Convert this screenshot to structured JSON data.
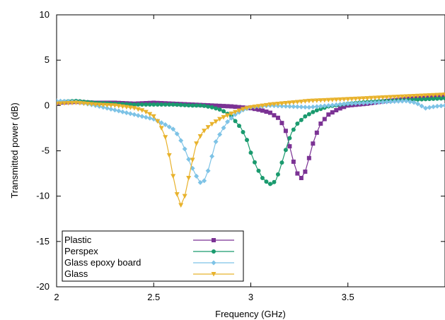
{
  "chart_data": {
    "type": "line",
    "xlabel": "Frequency (GHz)",
    "ylabel": "Transmitted power (dB)",
    "xlim": [
      2,
      4
    ],
    "ylim": [
      -20,
      10
    ],
    "x_ticks": [
      {
        "value": 2,
        "label": "2"
      },
      {
        "value": 2.5,
        "label": "2.5"
      },
      {
        "value": 3,
        "label": "3"
      },
      {
        "value": 3.5,
        "label": "3.5"
      }
    ],
    "y_ticks": [
      {
        "value": 10,
        "label": "10"
      },
      {
        "value": 5,
        "label": "5"
      },
      {
        "value": 0,
        "label": "0"
      },
      {
        "value": -5,
        "label": "-5"
      },
      {
        "value": -10,
        "label": "-10"
      },
      {
        "value": -15,
        "label": "-15"
      },
      {
        "value": -20,
        "label": "-20"
      }
    ],
    "grid": false,
    "legend": "bottom-left",
    "series": [
      {
        "name": "Plastic",
        "color": "#7b3294",
        "marker": "square",
        "points": [
          [
            2.0,
            0.3
          ],
          [
            2.1,
            0.4
          ],
          [
            2.2,
            0.3
          ],
          [
            2.3,
            0.3
          ],
          [
            2.4,
            0.2
          ],
          [
            2.5,
            0.3
          ],
          [
            2.6,
            0.2
          ],
          [
            2.7,
            0.1
          ],
          [
            2.8,
            0.0
          ],
          [
            2.9,
            -0.1
          ],
          [
            2.95,
            -0.2
          ],
          [
            3.0,
            -0.3
          ],
          [
            3.05,
            -0.5
          ],
          [
            3.1,
            -0.8
          ],
          [
            3.15,
            -1.5
          ],
          [
            3.18,
            -2.8
          ],
          [
            3.2,
            -4.5
          ],
          [
            3.22,
            -6.2
          ],
          [
            3.24,
            -7.5
          ],
          [
            3.26,
            -8.0
          ],
          [
            3.28,
            -7.3
          ],
          [
            3.3,
            -5.8
          ],
          [
            3.32,
            -4.2
          ],
          [
            3.34,
            -3.0
          ],
          [
            3.36,
            -2.0
          ],
          [
            3.4,
            -1.0
          ],
          [
            3.45,
            -0.4
          ],
          [
            3.5,
            0.0
          ],
          [
            3.6,
            0.2
          ],
          [
            3.7,
            0.5
          ],
          [
            3.8,
            0.7
          ],
          [
            3.9,
            0.9
          ],
          [
            4.0,
            1.1
          ]
        ]
      },
      {
        "name": "Perspex",
        "color": "#1a9a6e",
        "marker": "circle",
        "points": [
          [
            2.0,
            0.4
          ],
          [
            2.1,
            0.5
          ],
          [
            2.2,
            0.3
          ],
          [
            2.3,
            0.2
          ],
          [
            2.4,
            0.1
          ],
          [
            2.5,
            0.1
          ],
          [
            2.6,
            0.1
          ],
          [
            2.7,
            0.0
          ],
          [
            2.75,
            0.0
          ],
          [
            2.8,
            -0.2
          ],
          [
            2.85,
            -0.5
          ],
          [
            2.9,
            -1.2
          ],
          [
            2.95,
            -2.5
          ],
          [
            2.98,
            -3.8
          ],
          [
            3.0,
            -5.2
          ],
          [
            3.03,
            -6.8
          ],
          [
            3.06,
            -8.0
          ],
          [
            3.09,
            -8.6
          ],
          [
            3.11,
            -8.7
          ],
          [
            3.13,
            -8.2
          ],
          [
            3.15,
            -7.0
          ],
          [
            3.17,
            -5.6
          ],
          [
            3.19,
            -4.2
          ],
          [
            3.21,
            -3.0
          ],
          [
            3.24,
            -2.0
          ],
          [
            3.28,
            -1.2
          ],
          [
            3.33,
            -0.6
          ],
          [
            3.4,
            -0.1
          ],
          [
            3.5,
            0.2
          ],
          [
            3.6,
            0.4
          ],
          [
            3.7,
            0.5
          ],
          [
            3.8,
            0.6
          ],
          [
            3.9,
            0.7
          ],
          [
            4.0,
            0.8
          ]
        ]
      },
      {
        "name": "Glass epoxy board",
        "color": "#7ec3e6",
        "marker": "diamond",
        "points": [
          [
            2.0,
            0.5
          ],
          [
            2.1,
            0.4
          ],
          [
            2.2,
            0.0
          ],
          [
            2.3,
            -0.5
          ],
          [
            2.4,
            -1.0
          ],
          [
            2.5,
            -1.5
          ],
          [
            2.55,
            -2.0
          ],
          [
            2.6,
            -2.6
          ],
          [
            2.63,
            -3.4
          ],
          [
            2.66,
            -4.8
          ],
          [
            2.69,
            -6.5
          ],
          [
            2.72,
            -7.8
          ],
          [
            2.74,
            -8.5
          ],
          [
            2.76,
            -8.3
          ],
          [
            2.78,
            -7.2
          ],
          [
            2.8,
            -5.6
          ],
          [
            2.82,
            -4.0
          ],
          [
            2.85,
            -2.8
          ],
          [
            2.88,
            -1.8
          ],
          [
            2.92,
            -1.0
          ],
          [
            2.96,
            -0.5
          ],
          [
            3.0,
            -0.2
          ],
          [
            3.1,
            0.0
          ],
          [
            3.2,
            -0.1
          ],
          [
            3.3,
            -0.2
          ],
          [
            3.4,
            0.0
          ],
          [
            3.5,
            0.2
          ],
          [
            3.6,
            0.3
          ],
          [
            3.7,
            0.4
          ],
          [
            3.8,
            0.5
          ],
          [
            3.85,
            0.3
          ],
          [
            3.9,
            -0.3
          ],
          [
            3.95,
            -0.1
          ],
          [
            4.0,
            0.0
          ]
        ]
      },
      {
        "name": "Glass",
        "color": "#e8b22c",
        "marker": "triangle-down",
        "points": [
          [
            2.0,
            0.2
          ],
          [
            2.1,
            0.3
          ],
          [
            2.2,
            0.1
          ],
          [
            2.3,
            0.0
          ],
          [
            2.4,
            -0.3
          ],
          [
            2.45,
            -0.6
          ],
          [
            2.5,
            -1.2
          ],
          [
            2.53,
            -2.0
          ],
          [
            2.56,
            -3.5
          ],
          [
            2.58,
            -5.5
          ],
          [
            2.6,
            -7.8
          ],
          [
            2.62,
            -9.8
          ],
          [
            2.64,
            -11.0
          ],
          [
            2.66,
            -10.0
          ],
          [
            2.68,
            -8.0
          ],
          [
            2.7,
            -6.0
          ],
          [
            2.72,
            -4.2
          ],
          [
            2.75,
            -3.0
          ],
          [
            2.79,
            -2.2
          ],
          [
            2.84,
            -1.5
          ],
          [
            2.9,
            -0.9
          ],
          [
            2.96,
            -0.4
          ],
          [
            3.0,
            -0.2
          ],
          [
            3.1,
            0.1
          ],
          [
            3.2,
            0.3
          ],
          [
            3.3,
            0.5
          ],
          [
            3.4,
            0.6
          ],
          [
            3.5,
            0.7
          ],
          [
            3.6,
            0.8
          ],
          [
            3.7,
            0.9
          ],
          [
            3.8,
            1.0
          ],
          [
            3.9,
            1.1
          ],
          [
            4.0,
            1.2
          ]
        ]
      }
    ]
  }
}
